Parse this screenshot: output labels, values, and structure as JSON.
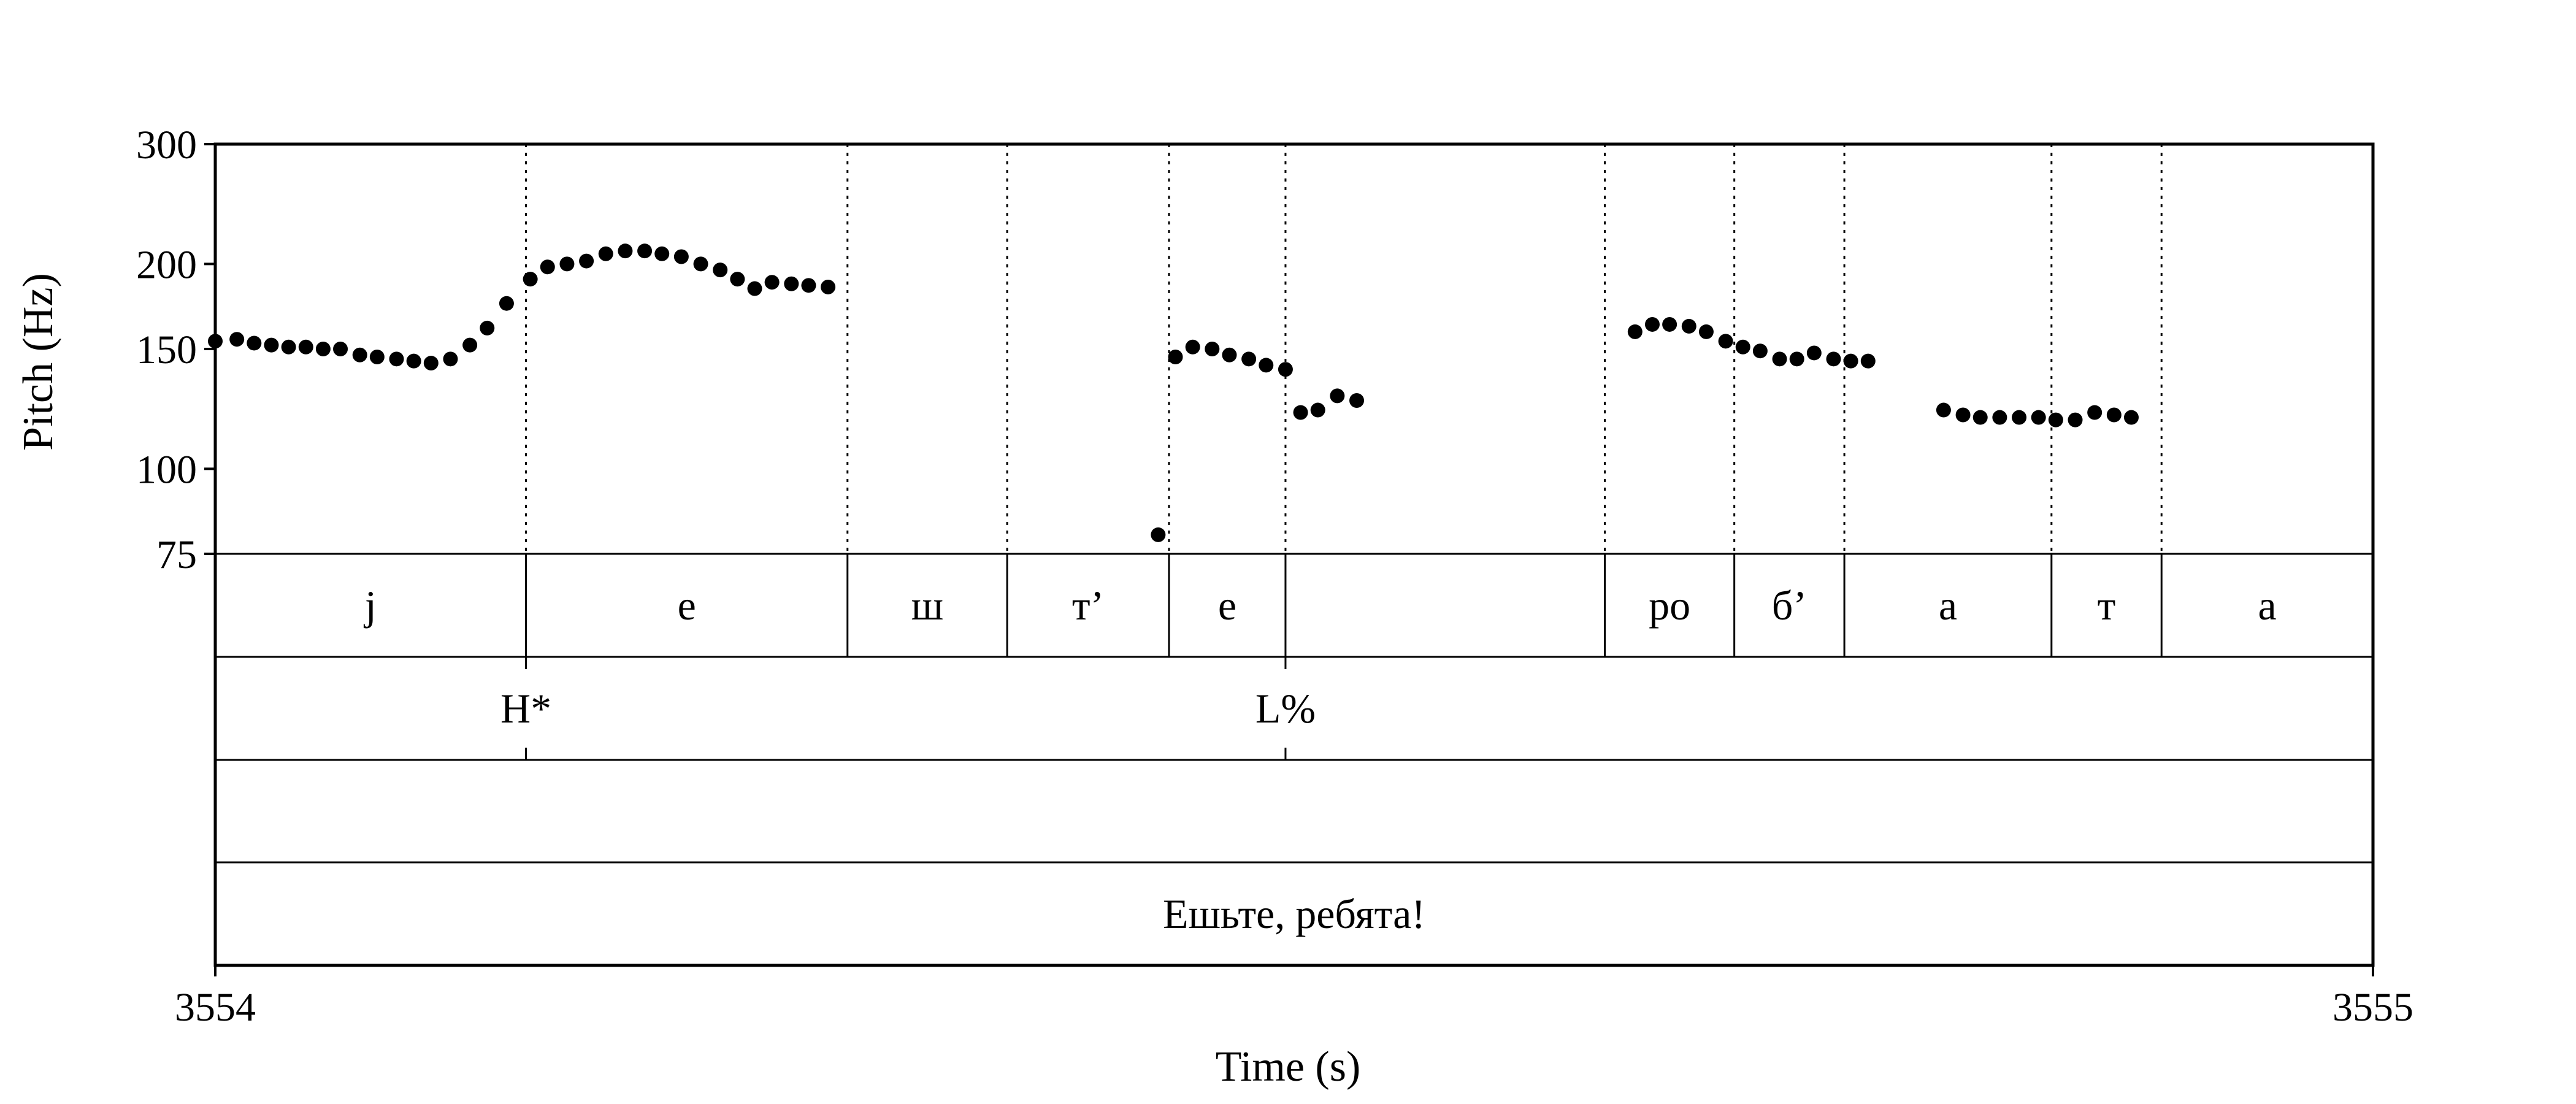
{
  "chart_data": {
    "type": "scatter",
    "ylabel": "Pitch (Hz)",
    "xlabel": "Time (s)",
    "y_scale": "log",
    "ylim": [
      75,
      300
    ],
    "y_ticks": [
      "300",
      "200",
      "150",
      "100",
      "75"
    ],
    "y_tick_values": [
      300,
      200,
      150,
      100,
      75
    ],
    "xlim": [
      3554,
      3555
    ],
    "x_ticks": [
      "3554",
      "3555"
    ],
    "x_tick_values": [
      3554,
      3555
    ],
    "grid": false,
    "series": [
      {
        "points": [
          [
            3554.0,
            154
          ],
          [
            3554.01,
            155
          ],
          [
            3554.018,
            153
          ],
          [
            3554.026,
            152
          ],
          [
            3554.034,
            151
          ],
          [
            3554.042,
            151
          ],
          [
            3554.05,
            150
          ],
          [
            3554.058,
            150
          ],
          [
            3554.067,
            147
          ],
          [
            3554.075,
            146
          ],
          [
            3554.084,
            145
          ],
          [
            3554.092,
            144
          ],
          [
            3554.1,
            143
          ],
          [
            3554.109,
            145
          ],
          [
            3554.118,
            152
          ],
          [
            3554.126,
            161
          ],
          [
            3554.135,
            175
          ],
          [
            3554.146,
            190
          ],
          [
            3554.154,
            198
          ],
          [
            3554.163,
            200
          ],
          [
            3554.172,
            202
          ],
          [
            3554.181,
            207
          ],
          [
            3554.19,
            209
          ],
          [
            3554.199,
            209
          ],
          [
            3554.207,
            207
          ],
          [
            3554.216,
            205
          ],
          [
            3554.225,
            200
          ],
          [
            3554.234,
            196
          ],
          [
            3554.242,
            190
          ],
          [
            3554.25,
            184
          ],
          [
            3554.258,
            188
          ],
          [
            3554.267,
            187
          ],
          [
            3554.275,
            186
          ],
          [
            3554.284,
            185
          ],
          [
            3554.437,
            80
          ],
          [
            3554.445,
            146
          ],
          [
            3554.453,
            151
          ],
          [
            3554.462,
            150
          ],
          [
            3554.47,
            147
          ],
          [
            3554.479,
            145
          ],
          [
            3554.487,
            142
          ],
          [
            3554.496,
            140
          ],
          [
            3554.503,
            121
          ],
          [
            3554.511,
            122
          ],
          [
            3554.52,
            128
          ],
          [
            3554.529,
            126
          ],
          [
            3554.658,
            159
          ],
          [
            3554.666,
            163
          ],
          [
            3554.674,
            163
          ],
          [
            3554.683,
            162
          ],
          [
            3554.691,
            159
          ],
          [
            3554.7,
            154
          ],
          [
            3554.708,
            151
          ],
          [
            3554.716,
            149
          ],
          [
            3554.725,
            145
          ],
          [
            3554.733,
            145
          ],
          [
            3554.741,
            148
          ],
          [
            3554.75,
            145
          ],
          [
            3554.758,
            144
          ],
          [
            3554.766,
            144
          ],
          [
            3554.801,
            122
          ],
          [
            3554.81,
            120
          ],
          [
            3554.818,
            119
          ],
          [
            3554.827,
            119
          ],
          [
            3554.836,
            119
          ],
          [
            3554.845,
            119
          ],
          [
            3554.853,
            118
          ],
          [
            3554.862,
            118
          ],
          [
            3554.871,
            121
          ],
          [
            3554.88,
            120
          ],
          [
            3554.888,
            119
          ]
        ]
      }
    ],
    "pitch_boundaries": [
      3554.144,
      3554.293,
      3554.367,
      3554.442,
      3554.496,
      3554.644,
      3554.704,
      3554.755,
      3554.851,
      3554.902
    ],
    "tiers": [
      {
        "intervals": [
          {
            "start": 3554.0,
            "end": 3554.144,
            "label": "j"
          },
          {
            "start": 3554.144,
            "end": 3554.293,
            "label": "e"
          },
          {
            "start": 3554.293,
            "end": 3554.367,
            "label": "ш"
          },
          {
            "start": 3554.367,
            "end": 3554.442,
            "label": "т’"
          },
          {
            "start": 3554.442,
            "end": 3554.496,
            "label": "e"
          },
          {
            "start": 3554.496,
            "end": 3554.644,
            "label": ""
          },
          {
            "start": 3554.644,
            "end": 3554.704,
            "label": "ро"
          },
          {
            "start": 3554.704,
            "end": 3554.755,
            "label": "б’"
          },
          {
            "start": 3554.755,
            "end": 3554.851,
            "label": "а"
          },
          {
            "start": 3554.851,
            "end": 3554.902,
            "label": "т"
          },
          {
            "start": 3554.902,
            "end": 3555.0,
            "label": "а"
          }
        ]
      },
      {
        "points": [
          {
            "time": 3554.144,
            "label": "H*"
          },
          {
            "time": 3554.496,
            "label": "L%"
          }
        ]
      },
      {
        "intervals": [
          {
            "start": 3554.0,
            "end": 3555.0,
            "label": ""
          }
        ]
      },
      {
        "intervals": [
          {
            "start": 3554.0,
            "end": 3555.0,
            "label": "Ешьте, ребята!"
          }
        ]
      }
    ]
  }
}
